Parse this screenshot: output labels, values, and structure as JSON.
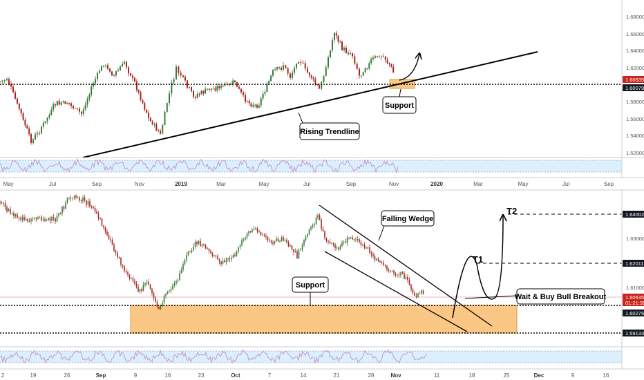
{
  "colors": {
    "up": "#3a7a3a",
    "down": "#a5261f",
    "osc_line": "#c48fd1",
    "osc_band": "#dbeffc",
    "support_fill": "#fbc784",
    "support_border": "#e39b3b",
    "price_tag_red": "#c8251d",
    "price_tag_black": "#131722"
  },
  "top_chart": {
    "price_axis": {
      "labels": [
        "1.68000",
        "1.66000",
        "1.64000",
        "1.62000",
        "1.58000",
        "1.56000",
        "1.54000",
        "1.52000"
      ],
      "ylim": [
        1.514,
        1.693
      ]
    },
    "price_tags": {
      "current": "1.60635",
      "level": "1.60079"
    },
    "time_axis": [
      "May",
      "Jul",
      "Sep",
      "Nov",
      "2019",
      "Mar",
      "May",
      "Jul",
      "Sep",
      "Nov",
      "2020",
      "Mar",
      "May",
      "Jul",
      "Sep"
    ],
    "annotations": {
      "support": "Support",
      "trendline": "Rising Trendline"
    }
  },
  "bottom_chart": {
    "price_axis": {
      "labels": [
        "1.63000",
        "1.61000"
      ],
      "ylim": [
        1.5878,
        1.6512
      ]
    },
    "price_tags": {
      "t2": "1.64002",
      "t1": "1.62011",
      "current": "1.60635",
      "countdown": "01:21:35",
      "level": "1.60276",
      "support_low": "1.59133"
    },
    "time_axis": [
      "2",
      "19",
      "26",
      "Sep",
      "9",
      "16",
      "23",
      "Oct",
      "7",
      "14",
      "21",
      "28",
      "Nov",
      "11",
      "18",
      "25",
      "Dec",
      "9",
      "16"
    ],
    "annotations": {
      "t2": "T2",
      "t1": "T1",
      "wedge": "Falling Wedge",
      "support": "Support",
      "breakout": "Wait & Buy Bull Breakout"
    }
  },
  "chart_data": [
    {
      "type": "line",
      "title": "",
      "xlabel": "",
      "ylabel": "",
      "ylim": [
        1.514,
        1.693
      ],
      "x": [
        "May",
        "Jul",
        "Sep",
        "Nov",
        "2019",
        "Mar",
        "May",
        "Jul",
        "Sep",
        "Nov"
      ],
      "series": [
        {
          "values": [
            1.615,
            1.545,
            1.585,
            1.56,
            1.615,
            1.585,
            1.61,
            1.63,
            1.64,
            1.607
          ]
        }
      ],
      "levels": {
        "support": 1.6008
      },
      "grid": false
    },
    {
      "type": "line",
      "title": "",
      "xlabel": "",
      "ylabel": "",
      "ylim": [
        1.5878,
        1.6512
      ],
      "x": [
        "2",
        "19",
        "26",
        "Sep",
        "9",
        "16",
        "23",
        "Oct",
        "7",
        "14",
        "21",
        "28",
        "Nov"
      ],
      "series": [
        {
          "values": [
            1.645,
            1.638,
            1.64,
            1.63,
            1.605,
            1.602,
            1.618,
            1.622,
            1.625,
            1.64,
            1.625,
            1.617,
            1.606
          ]
        }
      ],
      "levels": {
        "t2": 1.64002,
        "t1": 1.62011,
        "support_top": 1.60276,
        "support_bottom": 1.59133
      },
      "grid": false
    }
  ]
}
